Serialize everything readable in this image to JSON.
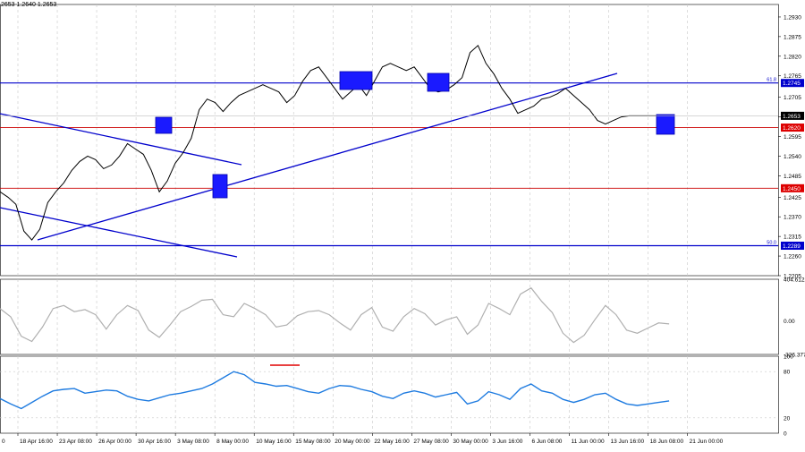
{
  "ohlc_readout": "2653 1.2640 1.2653",
  "colors": {
    "background": "#ffffff",
    "price_line": "#000000",
    "trend_blue": "#0000cc",
    "level_red": "#cc0000",
    "marker_fill": "#1a1aff",
    "cci": "#b0b0b0",
    "rsi": "#1e7be0",
    "rsi_red_mark": "#e00000",
    "grid": "#c8c8c8",
    "price_tag_black": "#000000",
    "price_tag_red": "#dd0000",
    "price_tag_blue": "#0000cc"
  },
  "chart_data": [
    {
      "type": "line",
      "panel": "price",
      "ylim": [
        1.2205,
        1.2965
      ],
      "y_ticks": [
        "1.2930",
        "1.2875",
        "1.2820",
        "1.2765",
        "1.2705",
        "1.2650",
        "1.2595",
        "1.2540",
        "1.2485",
        "1.2425",
        "1.2370",
        "1.2315",
        "1.2260",
        "1.2205"
      ],
      "x_labels": [
        "18 Apr 16:00",
        "23 Apr 08:00",
        "26 Apr 00:00",
        "30 Apr 16:00",
        "3 May 08:00",
        "8 May 00:00",
        "10 May 16:00",
        "15 May 08:00",
        "20 May 00:00",
        "22 May 16:00",
        "27 May 08:00",
        "30 May 00:00",
        "3 Jun 16:00",
        "6 Jun 08:00",
        "11 Jun 00:00",
        "13 Jun 16:00",
        "18 Jun 08:00",
        "21 Jun 00:00"
      ],
      "x_first_label": "0",
      "series": [
        {
          "x": [
            0,
            3,
            6,
            9,
            12,
            15,
            18,
            21,
            24,
            27,
            30,
            33,
            36,
            39,
            42,
            45,
            48,
            51,
            54,
            57,
            60,
            63,
            66,
            69,
            72,
            75,
            78,
            81,
            84,
            87,
            90,
            93,
            96,
            99,
            102,
            105,
            108,
            111,
            114,
            117,
            120,
            123,
            126,
            129,
            132,
            135,
            138,
            141,
            144,
            147,
            150,
            153,
            156,
            159,
            162,
            165,
            168,
            171,
            174,
            177,
            180,
            183,
            186,
            189,
            192,
            195,
            198,
            201,
            204,
            207,
            210,
            213,
            216,
            219,
            222,
            225,
            228,
            231,
            234,
            237,
            240,
            243,
            246,
            249,
            252
          ],
          "y": [
            1.244,
            1.2425,
            1.2405,
            1.233,
            1.2305,
            1.2335,
            1.241,
            1.244,
            1.2465,
            1.25,
            1.2525,
            1.254,
            1.253,
            1.2505,
            1.2515,
            1.254,
            1.2575,
            1.256,
            1.2545,
            1.25,
            1.244,
            1.247,
            1.252,
            1.255,
            1.259,
            1.267,
            1.27,
            1.269,
            1.2665,
            1.269,
            1.271,
            1.272,
            1.273,
            1.274,
            1.273,
            1.272,
            1.269,
            1.271,
            1.275,
            1.278,
            1.279,
            1.276,
            1.273,
            1.27,
            1.272,
            1.274,
            1.271,
            1.275,
            1.279,
            1.28,
            1.279,
            1.278,
            1.279,
            1.276,
            1.273,
            1.272,
            1.2725,
            1.274,
            1.276,
            1.283,
            1.285,
            1.28,
            1.277,
            1.273,
            1.27,
            1.266,
            1.267,
            1.268,
            1.27,
            1.2705,
            1.2715,
            1.273,
            1.271,
            1.269,
            1.267,
            1.264,
            1.263,
            1.264,
            1.265,
            1.2653,
            1.2653,
            1.2653,
            1.2653,
            1.2653,
            1.2653
          ]
        }
      ],
      "levels": [
        {
          "label": "1.2745",
          "value": 1.2745,
          "color": "blue",
          "fib_label": "61.8"
        },
        {
          "label": "1.2620",
          "value": 1.262,
          "color": "red"
        },
        {
          "label": "1.2450",
          "value": 1.245,
          "color": "red"
        },
        {
          "label": "1.2289",
          "value": 1.2289,
          "color": "blue",
          "fib_label": "50.0"
        }
      ],
      "current_price": {
        "label": "1.2653",
        "value": 1.2653
      }
    },
    {
      "type": "line",
      "panel": "cci",
      "ylim": [
        -326.377,
        404.6122
      ],
      "y_ticks": [
        "404.6122",
        "0.00",
        "-326.377"
      ],
      "series": [
        {
          "x": [
            0,
            4,
            8,
            12,
            16,
            20,
            24,
            28,
            32,
            36,
            40,
            44,
            48,
            52,
            56,
            60,
            64,
            68,
            72,
            76,
            80,
            84,
            88,
            92,
            96,
            100,
            104,
            108,
            112,
            116,
            120,
            124,
            128,
            132,
            136,
            140,
            144,
            148,
            152,
            156,
            160,
            164,
            168,
            172,
            176,
            180,
            184,
            188,
            192,
            196,
            200,
            204,
            208,
            212,
            216,
            220,
            224,
            228,
            232,
            236,
            240,
            244,
            248,
            252
          ],
          "y": [
            120,
            40,
            -150,
            -200,
            -60,
            120,
            150,
            90,
            110,
            60,
            -80,
            60,
            150,
            100,
            -90,
            -160,
            -40,
            90,
            140,
            200,
            210,
            60,
            40,
            170,
            120,
            60,
            -60,
            -40,
            50,
            90,
            100,
            60,
            -20,
            -90,
            60,
            130,
            -60,
            -100,
            40,
            120,
            70,
            -40,
            10,
            40,
            -130,
            -40,
            170,
            120,
            60,
            260,
            320,
            190,
            80,
            -120,
            -210,
            -140,
            10,
            150,
            60,
            -90,
            -120,
            -70,
            -20,
            -30
          ]
        }
      ]
    },
    {
      "type": "line",
      "panel": "rsi",
      "ylim": [
        0,
        100
      ],
      "y_ticks": [
        "100",
        "80",
        "20",
        "0"
      ],
      "series": [
        {
          "x": [
            0,
            4,
            8,
            12,
            16,
            20,
            24,
            28,
            32,
            36,
            40,
            44,
            48,
            52,
            56,
            60,
            64,
            68,
            72,
            76,
            80,
            84,
            88,
            92,
            96,
            100,
            104,
            108,
            112,
            116,
            120,
            124,
            128,
            132,
            136,
            140,
            144,
            148,
            152,
            156,
            160,
            164,
            168,
            172,
            176,
            180,
            184,
            188,
            192,
            196,
            200,
            204,
            208,
            212,
            216,
            220,
            224,
            228,
            232,
            236,
            240,
            244,
            248,
            252
          ],
          "y": [
            45,
            38,
            32,
            40,
            48,
            55,
            57,
            58,
            52,
            54,
            56,
            55,
            48,
            44,
            42,
            46,
            50,
            52,
            55,
            58,
            64,
            72,
            80,
            76,
            66,
            64,
            61,
            62,
            58,
            54,
            52,
            58,
            62,
            61,
            57,
            54,
            48,
            45,
            52,
            55,
            52,
            47,
            50,
            53,
            38,
            42,
            54,
            50,
            44,
            58,
            64,
            55,
            52,
            44,
            40,
            44,
            50,
            52,
            44,
            38,
            36,
            38,
            40,
            42
          ]
        }
      ]
    }
  ]
}
